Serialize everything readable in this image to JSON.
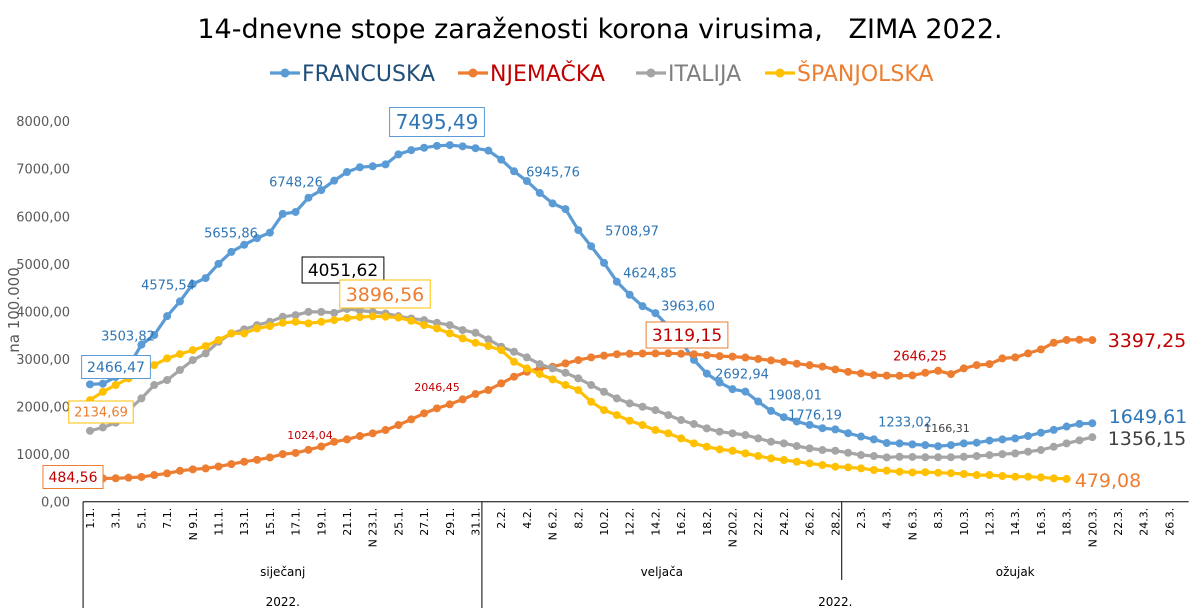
{
  "chart_data": {
    "type": "line",
    "title": "14-dnevne stope zaraženosti korona virusima,   ZIMA 2022.",
    "ylabel": "na 100.000",
    "xlabel": "",
    "ylim": [
      0,
      8000
    ],
    "yticks": [
      "0,00",
      "1000,00",
      "2000,00",
      "3000,00",
      "4000,00",
      "5000,00",
      "6000,00",
      "7000,00",
      "8000,00"
    ],
    "ytick_values": [
      0,
      1000,
      2000,
      3000,
      4000,
      5000,
      6000,
      7000,
      8000
    ],
    "category_count": 86,
    "xtick_labels": [
      "1.1.",
      "3.1.",
      "5.1.",
      "7.1.",
      "N 9.1.",
      "11.1.",
      "13.1.",
      "15.1.",
      "17.1.",
      "19.1.",
      "21.1.",
      "N 23.1.",
      "25.1.",
      "27.1.",
      "29.1.",
      "31.1.",
      "2.2.",
      "4.2.",
      "N 6.2.",
      "8.2.",
      "10.2.",
      "12.2.",
      "14.2.",
      "16.2.",
      "18.2.",
      "N 20.2.",
      "22.2.",
      "24.2.",
      "26.2.",
      "28.2.",
      "2.3.",
      "4.3.",
      "N 6.3.",
      "8.3.",
      "10.3.",
      "12.3.",
      "14.3.",
      "16.3.",
      "18.3.",
      "N 20.3.",
      "22.3.",
      "24.3.",
      "26.3."
    ],
    "months": [
      {
        "label": "siječanj",
        "start": 0,
        "end": 30
      },
      {
        "label": "veljača",
        "start": 31,
        "end": 58
      },
      {
        "label": "ožujak",
        "start": 59,
        "end": 85
      }
    ],
    "years": [
      {
        "label": "2022.",
        "start": 0,
        "end": 30
      },
      {
        "label": "2022.",
        "start": 31,
        "end": 85
      }
    ],
    "legend_position": "top",
    "grid": false,
    "series": [
      {
        "name": "FRANCUSKA",
        "color": "#5B9BD5",
        "legend_text_color": "#1F4E79",
        "values": [
          2466.47,
          2480,
          2620,
          2840,
          3300,
          3503.82,
          3900,
          4210,
          4575.54,
          4700,
          5000,
          5250,
          5400,
          5540,
          5655.86,
          6050,
          6090,
          6390,
          6550,
          6748.26,
          6930,
          7030,
          7050,
          7090,
          7300,
          7390,
          7440,
          7480,
          7495.49,
          7470,
          7430,
          7380,
          7190,
          6945.76,
          6740,
          6490,
          6270,
          6150,
          5708.97,
          5370,
          5020,
          4624.85,
          4350,
          4110,
          3963.6,
          3690,
          3370,
          2980,
          2692.94,
          2505,
          2365,
          2315,
          2105,
          1908.01,
          1776.19,
          1685,
          1615,
          1545,
          1520,
          1440,
          1370,
          1310,
          1233.02,
          1225,
          1205,
          1190,
          1166.31,
          1190,
          1225,
          1240,
          1285,
          1310,
          1330,
          1380,
          1450,
          1510,
          1580,
          1635,
          1649.61
        ]
      },
      {
        "name": "NJEMAČKA",
        "color": "#ED7D31",
        "legend_text_color": "#C00000",
        "values": [
          484.56,
          490,
          492,
          505,
          520,
          560,
          595,
          650,
          680,
          700,
          740,
          790,
          840,
          880,
          930,
          1000,
          1024.04,
          1090,
          1160,
          1260,
          1310,
          1380,
          1437,
          1506,
          1611,
          1731,
          1857,
          1962,
          2046.45,
          2150,
          2263,
          2347,
          2487,
          2627,
          2731,
          2802,
          2836,
          2907,
          2977,
          3033,
          3070,
          3100,
          3110,
          3115,
          3117,
          3119.15,
          3110,
          3100,
          3080,
          3060,
          3050,
          3030,
          3000,
          2970,
          2940,
          2900,
          2870,
          2840,
          2780,
          2730,
          2697,
          2661,
          2650,
          2646.25,
          2655,
          2710,
          2752,
          2682,
          2802,
          2872,
          2893,
          3012,
          3033,
          3117,
          3201,
          3341,
          3400,
          3405,
          3397.25
        ]
      },
      {
        "name": "ITALIJA",
        "color": "#A5A5A5",
        "legend_text_color": "#7F7F7F",
        "values": [
          1490,
          1560,
          1660,
          1926,
          2172,
          2452,
          2557,
          2767,
          2977,
          3117,
          3361,
          3538,
          3622,
          3712,
          3782,
          3887,
          3922,
          3990,
          3990,
          3970,
          4051.62,
          4020,
          3990,
          3957,
          3900,
          3852,
          3817,
          3761,
          3712,
          3607,
          3551,
          3411,
          3257,
          3151,
          3033,
          2892,
          2802,
          2710,
          2592,
          2452,
          2311,
          2172,
          2067,
          1996,
          1926,
          1821,
          1716,
          1632,
          1541,
          1471,
          1437,
          1401,
          1331,
          1261,
          1227,
          1170,
          1121,
          1086,
          1071,
          1029,
          981,
          960,
          932,
          945,
          940,
          935,
          935,
          935,
          945,
          960,
          980,
          1000,
          1016,
          1051,
          1086,
          1155,
          1226,
          1290,
          1356.15
        ]
      },
      {
        "name": "ŠPANJOLSKA",
        "color": "#FFC000",
        "legend_text_color": "#ED7D31",
        "values": [
          2134.69,
          2311,
          2452,
          2592,
          2731,
          2872,
          3012,
          3103,
          3187,
          3271,
          3397,
          3538,
          3538,
          3643,
          3691,
          3761,
          3782,
          3748,
          3782,
          3817,
          3860,
          3880,
          3896.56,
          3890,
          3870,
          3803,
          3712,
          3643,
          3538,
          3433,
          3340,
          3271,
          3187,
          2942,
          2802,
          2683,
          2571,
          2452,
          2346,
          2101,
          1926,
          1821,
          1702,
          1611,
          1506,
          1437,
          1331,
          1227,
          1156,
          1100,
          1071,
          1016,
          960,
          911,
          876,
          840,
          806,
          771,
          735,
          722,
          701,
          666,
          652,
          630,
          615,
          620,
          609,
          600,
          582,
          560,
          560,
          540,
          525,
          525,
          512,
          491,
          479.08
        ]
      }
    ],
    "data_labels": [
      {
        "series": 0,
        "index": 0,
        "text": "2466,47",
        "boxed": true,
        "color": "#2E75B6",
        "border": "#5B9BD5"
      },
      {
        "series": 0,
        "index": 5,
        "text": "3503,82",
        "color": "#2E75B6"
      },
      {
        "series": 0,
        "index": 8,
        "text": "4575,54",
        "color": "#2E75B6"
      },
      {
        "series": 0,
        "index": 14,
        "text": "5655,86",
        "color": "#2E75B6"
      },
      {
        "series": 0,
        "index": 19,
        "text": "6748,26",
        "color": "#2E75B6"
      },
      {
        "series": 0,
        "index": 28,
        "text": "7495,49",
        "boxed": true,
        "color": "#2E75B6",
        "border": "#5B9BD5"
      },
      {
        "series": 0,
        "index": 33,
        "text": "6945,76",
        "color": "#2E75B6"
      },
      {
        "series": 0,
        "index": 38,
        "text": "5708,97",
        "color": "#2E75B6"
      },
      {
        "series": 0,
        "index": 41,
        "text": "4624,85",
        "color": "#2E75B6"
      },
      {
        "series": 0,
        "index": 44,
        "text": "3963,60",
        "color": "#2E75B6"
      },
      {
        "series": 0,
        "index": 48,
        "text": "2692,94",
        "color": "#2E75B6"
      },
      {
        "series": 0,
        "index": 53,
        "text": "1908,01",
        "color": "#2E75B6"
      },
      {
        "series": 0,
        "index": 54,
        "text": "1776,19",
        "color": "#2E75B6"
      },
      {
        "series": 0,
        "index": 62,
        "text": "1233,02",
        "color": "#2E75B6"
      },
      {
        "series": 0,
        "index": 66,
        "text": "1166,31",
        "color": "#404040"
      },
      {
        "series": 0,
        "index": 78,
        "text": "1649,61",
        "color": "#2E75B6"
      },
      {
        "series": 1,
        "index": 0,
        "text": "484,56",
        "boxed": true,
        "color": "#C00000",
        "border": "#ED7D31"
      },
      {
        "series": 1,
        "index": 16,
        "text": "1024,04",
        "color": "#C00000"
      },
      {
        "series": 1,
        "index": 28,
        "text": "2046,45",
        "color": "#C00000"
      },
      {
        "series": 1,
        "index": 45,
        "text": "3119,15",
        "boxed": true,
        "color": "#C00000",
        "border": "#ED7D31"
      },
      {
        "series": 1,
        "index": 63,
        "text": "2646,25",
        "color": "#C00000"
      },
      {
        "series": 1,
        "index": 78,
        "text": "3397,25",
        "color": "#C00000"
      },
      {
        "series": 2,
        "index": 20,
        "text": "4051,62",
        "boxed": true,
        "color": "#000000",
        "border": "#000000"
      },
      {
        "series": 2,
        "index": 78,
        "text": "1356,15",
        "color": "#404040"
      },
      {
        "series": 3,
        "index": 0,
        "text": "2134,69",
        "boxed": true,
        "color": "#ED7D31",
        "border": "#FFC000"
      },
      {
        "series": 3,
        "index": 22,
        "text": "3896,56",
        "boxed": true,
        "color": "#ED7D31",
        "border": "#FFC000"
      },
      {
        "series": 3,
        "index": 76,
        "text": "479,08",
        "color": "#ED7D31"
      }
    ]
  }
}
